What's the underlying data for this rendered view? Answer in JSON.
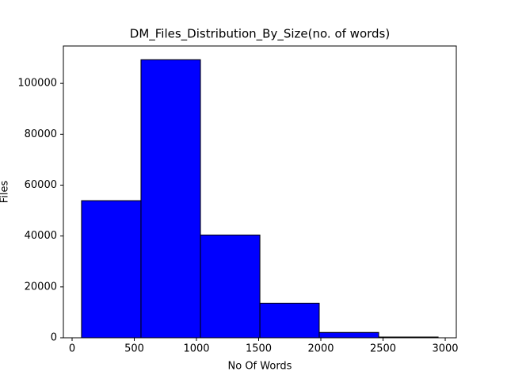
{
  "chart_data": {
    "type": "histogram",
    "title": "DM_Files_Distribution_By_Size(no. of words)",
    "x_label": "No Of Words",
    "y_label": "Files",
    "bins": [
      76,
      554,
      1032,
      1510,
      1987,
      2465,
      2943
    ],
    "values": [
      53900,
      109300,
      40400,
      13600,
      2100,
      300
    ],
    "color": "#0000ff",
    "edgecolor": "#000000",
    "xlim": [
      -70,
      3089
    ],
    "ylim": [
      0,
      114700
    ],
    "xticks": [
      0,
      500,
      1000,
      1500,
      2000,
      2500,
      3000
    ],
    "yticks": [
      0,
      20000,
      40000,
      60000,
      80000,
      100000
    ]
  }
}
